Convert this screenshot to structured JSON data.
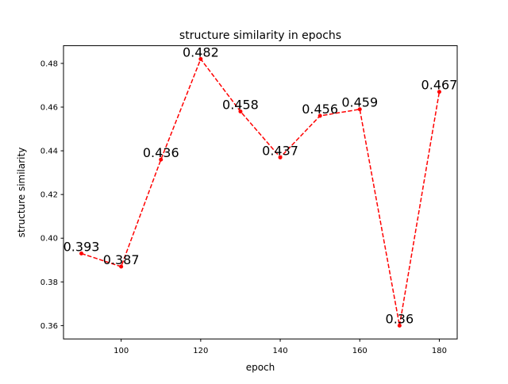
{
  "chart_data": {
    "type": "line",
    "title": "structure similarity in epochs",
    "xlabel": "epoch",
    "ylabel": "structure similarity",
    "x": [
      90,
      100,
      110,
      120,
      130,
      140,
      150,
      160,
      170,
      180
    ],
    "series": [
      {
        "values": [
          0.393,
          0.387,
          0.436,
          0.482,
          0.458,
          0.437,
          0.456,
          0.459,
          0.36,
          0.467
        ],
        "labels": [
          "0.393",
          "0.387",
          "0.436",
          "0.482",
          "0.458",
          "0.437",
          "0.456",
          "0.459",
          "0.36",
          "0.467"
        ],
        "color": "#ff0000",
        "linestyle": "dashed",
        "marker": "dot"
      }
    ],
    "xlim": [
      85.5,
      184.5
    ],
    "ylim": [
      0.3539,
      0.4881
    ],
    "xticks": [
      "100",
      "120",
      "140",
      "160",
      "180"
    ],
    "xtick_values": [
      100,
      120,
      140,
      160,
      180
    ],
    "yticks": [
      "0.36",
      "0.38",
      "0.40",
      "0.42",
      "0.44",
      "0.46",
      "0.48"
    ],
    "ytick_values": [
      0.36,
      0.38,
      0.4,
      0.42,
      0.44,
      0.46,
      0.48
    ],
    "grid": false
  }
}
